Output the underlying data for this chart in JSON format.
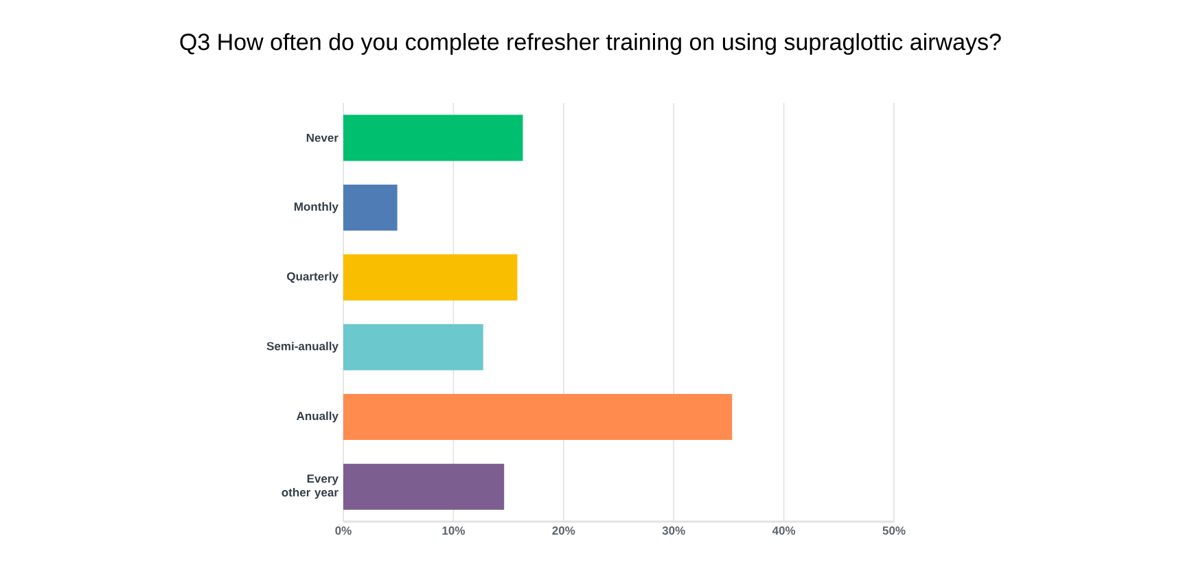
{
  "chart_data": {
    "type": "bar",
    "orientation": "horizontal",
    "title": "Q3 How often do you complete refresher training on using supraglottic airways?",
    "categories": [
      "Never",
      "Monthly",
      "Quarterly",
      "Semi-anually",
      "Anually",
      "Every other year"
    ],
    "values": [
      16.3,
      4.9,
      15.8,
      12.7,
      35.3,
      14.6
    ],
    "colors": [
      "#00bf6f",
      "#507cb6",
      "#f9be00",
      "#6bc8cd",
      "#ff8b4f",
      "#7d5e90"
    ],
    "xlim": [
      0,
      50
    ],
    "xticks": [
      {
        "value": 0,
        "label": "0%"
      },
      {
        "value": 10,
        "label": "10%"
      },
      {
        "value": 20,
        "label": "20%"
      },
      {
        "value": 30,
        "label": "30%"
      },
      {
        "value": 40,
        "label": "40%"
      },
      {
        "value": 50,
        "label": "50%"
      }
    ],
    "grid": "x"
  }
}
